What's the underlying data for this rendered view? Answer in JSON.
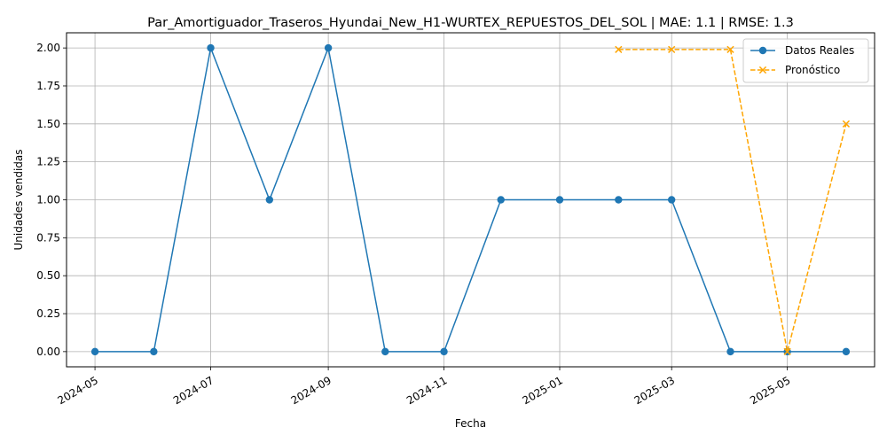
{
  "chart_data": {
    "type": "line",
    "title": "Par_Amortiguador_Traseros_Hyundai_New_H1-WURTEX_REPUESTOS_DEL_SOL | MAE: 1.1 | RMSE: 1.3",
    "xlabel": "Fecha",
    "ylabel": "Unidades vendidas",
    "ylim": [
      -0.1,
      2.1
    ],
    "xlim": [
      "2024-04-16",
      "2025-06-16"
    ],
    "grid": true,
    "legend_position": "top-right",
    "x_ticks": [
      "2024-05",
      "2024-07",
      "2024-09",
      "2024-11",
      "2025-01",
      "2025-03",
      "2025-05"
    ],
    "y_ticks": [
      "0.00",
      "0.25",
      "0.50",
      "0.75",
      "1.00",
      "1.25",
      "1.50",
      "1.75",
      "2.00"
    ],
    "series": [
      {
        "name": "Datos Reales",
        "color": "#1f77b4",
        "style": "solid",
        "marker": "circle",
        "x": [
          "2024-05-01",
          "2024-06-01",
          "2024-07-01",
          "2024-08-01",
          "2024-09-01",
          "2024-10-01",
          "2024-11-01",
          "2024-12-01",
          "2025-01-01",
          "2025-02-01",
          "2025-03-01",
          "2025-04-01",
          "2025-05-01",
          "2025-06-01"
        ],
        "values": [
          0,
          0,
          2,
          1,
          2,
          0,
          0,
          1,
          1,
          1,
          1,
          0,
          0,
          0
        ]
      },
      {
        "name": "Pronóstico",
        "color": "#ffa500",
        "style": "dashed",
        "marker": "x",
        "x": [
          "2025-02-01",
          "2025-03-01",
          "2025-04-01",
          "2025-05-01",
          "2025-06-01"
        ],
        "values": [
          1.99,
          1.99,
          1.99,
          0.0,
          1.5
        ]
      }
    ]
  }
}
